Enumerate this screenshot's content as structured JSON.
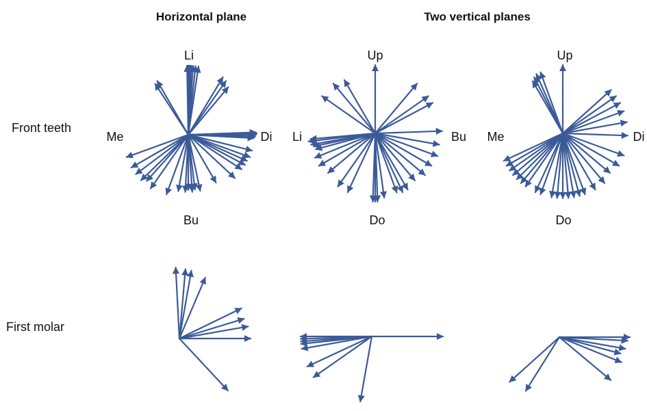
{
  "headers": {
    "horizontal": "Horizontal plane",
    "vertical": "Two vertical planes"
  },
  "rows": {
    "front": "Front teeth",
    "molar": "First molar"
  },
  "arrow_color": "#3a5a98",
  "diagrams": [
    {
      "id": "front-horizontal",
      "labels": {
        "top": "Li",
        "bottom": "Bu",
        "left": "Me",
        "right": "Di"
      },
      "vectors": [
        [
          -1.0,
          1.0
        ],
        [
          -0.5,
          1.0
        ],
        [
          0.3,
          1.0
        ],
        [
          0.5,
          1.0
        ],
        [
          1.0,
          1.0
        ],
        [
          1.5,
          1.0
        ],
        [
          2.5,
          1.0
        ],
        [
          4.0,
          1.0
        ],
        [
          6.0,
          1.0
        ],
        [
          8.5,
          1.0
        ],
        [
          31.0,
          0.97
        ],
        [
          35.0,
          0.95
        ],
        [
          40.0,
          0.9
        ],
        [
          -30.0,
          0.9
        ],
        [
          -33.0,
          0.88
        ],
        [
          88.0,
          0.98
        ],
        [
          89.0,
          0.99
        ],
        [
          90.0,
          0.98
        ],
        [
          91.5,
          0.97
        ],
        [
          93.0,
          0.95
        ],
        [
          104.0,
          0.95
        ],
        [
          110.0,
          0.95
        ],
        [
          114.0,
          0.93
        ],
        [
          118.0,
          0.93
        ],
        [
          123.0,
          0.92
        ],
        [
          133.0,
          0.92
        ],
        [
          150.0,
          0.8
        ],
        [
          168.0,
          0.83
        ],
        [
          173.0,
          0.8
        ],
        [
          176.0,
          0.83
        ],
        [
          180.0,
          0.8
        ],
        [
          183.0,
          0.83
        ],
        [
          190.0,
          0.83
        ],
        [
          200.0,
          0.92
        ],
        [
          215.0,
          0.95
        ],
        [
          222.0,
          0.9
        ],
        [
          226.0,
          0.95
        ],
        [
          233.0,
          0.95
        ],
        [
          240.0,
          0.95
        ],
        [
          250.0,
          0.95
        ]
      ]
    },
    {
      "id": "front-vertical-1",
      "labels": {
        "top": "Up",
        "bottom": "Do",
        "left": "Li",
        "right": "Bu"
      },
      "vectors": [
        [
          0.0,
          1.0
        ],
        [
          -40.0,
          0.95
        ],
        [
          -30.0,
          0.9
        ],
        [
          -55.0,
          0.95
        ],
        [
          40.0,
          0.95
        ],
        [
          55.0,
          0.95
        ],
        [
          62.0,
          0.95
        ],
        [
          88.0,
          0.98
        ],
        [
          100.0,
          0.95
        ],
        [
          110.0,
          0.97
        ],
        [
          120.0,
          0.95
        ],
        [
          130.0,
          0.95
        ],
        [
          140.0,
          0.9
        ],
        [
          150.0,
          0.95
        ],
        [
          155.0,
          0.95
        ],
        [
          160.0,
          0.92
        ],
        [
          172.0,
          0.95
        ],
        [
          178.0,
          1.0
        ],
        [
          180.0,
          1.0
        ],
        [
          182.0,
          1.0
        ],
        [
          -105.0,
          0.9
        ],
        [
          -102.0,
          0.92
        ],
        [
          -100.0,
          0.95
        ],
        [
          -97.0,
          0.98
        ],
        [
          -95.0,
          0.95
        ],
        [
          -112.0,
          0.95
        ],
        [
          -120.0,
          0.95
        ],
        [
          -130.0,
          0.9
        ],
        [
          -145.0,
          0.95
        ],
        [
          -155.0,
          0.95
        ]
      ]
    },
    {
      "id": "front-vertical-2",
      "labels": {
        "top": "Up",
        "bottom": "Do",
        "left": "Me",
        "right": "Di"
      },
      "vectors": [
        [
          0.0,
          1.0
        ],
        [
          -20.0,
          0.95
        ],
        [
          -24.0,
          0.95
        ],
        [
          -27.0,
          0.92
        ],
        [
          -30.0,
          0.88
        ],
        [
          48.0,
          0.95
        ],
        [
          55.0,
          0.95
        ],
        [
          62.0,
          0.95
        ],
        [
          70.0,
          0.95
        ],
        [
          80.0,
          0.95
        ],
        [
          92.0,
          0.95
        ],
        [
          110.0,
          0.95
        ],
        [
          120.0,
          0.95
        ],
        [
          130.0,
          0.9
        ],
        [
          140.0,
          0.95
        ],
        [
          150.0,
          0.95
        ],
        [
          160.0,
          0.95
        ],
        [
          165.0,
          0.95
        ],
        [
          170.0,
          0.95
        ],
        [
          175.0,
          0.95
        ],
        [
          180.0,
          0.95
        ],
        [
          185.0,
          0.95
        ],
        [
          190.0,
          0.95
        ],
        [
          200.0,
          0.95
        ],
        [
          205.0,
          0.95
        ],
        [
          215.0,
          0.95
        ],
        [
          220.0,
          0.95
        ],
        [
          225.0,
          0.95
        ],
        [
          230.0,
          0.95
        ],
        [
          235.0,
          0.95
        ],
        [
          240.0,
          0.95
        ],
        [
          245.0,
          0.95
        ]
      ]
    },
    {
      "id": "molar-horizontal",
      "vectors": [
        [
          -3.0,
          1.0
        ],
        [
          5.0,
          0.98
        ],
        [
          10.0,
          0.97
        ],
        [
          23.0,
          0.93
        ],
        [
          64.0,
          0.97
        ],
        [
          73.0,
          0.95
        ],
        [
          80.0,
          0.98
        ],
        [
          90.0,
          1.0
        ],
        [
          137.0,
          1.0
        ]
      ]
    },
    {
      "id": "molar-vertical-1",
      "vectors": [
        [
          90.0,
          1.0
        ],
        [
          -90.0,
          1.0
        ],
        [
          -92.0,
          1.0
        ],
        [
          -94.0,
          1.0
        ],
        [
          -96.0,
          1.0
        ],
        [
          -100.0,
          1.0
        ],
        [
          -115.0,
          1.0
        ],
        [
          -125.0,
          1.0
        ],
        [
          -170.0,
          0.93
        ]
      ]
    },
    {
      "id": "molar-vertical-2",
      "vectors": [
        [
          90.0,
          1.0
        ],
        [
          93.0,
          0.97
        ],
        [
          100.0,
          0.95
        ],
        [
          105.0,
          0.9
        ],
        [
          112.0,
          0.95
        ],
        [
          130.0,
          0.95
        ],
        [
          -132.0,
          0.95
        ],
        [
          -148.0,
          0.9
        ]
      ]
    }
  ]
}
